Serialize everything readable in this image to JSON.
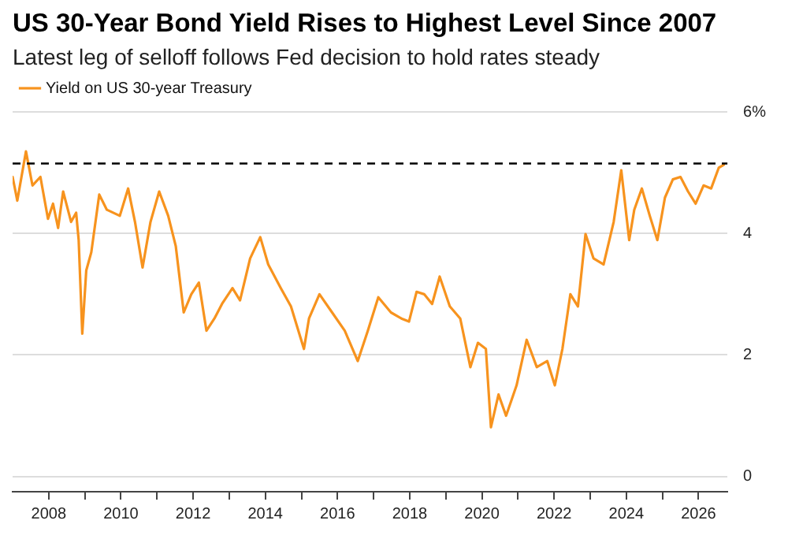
{
  "chart_data": {
    "type": "line",
    "title": "US 30-Year Bond Yield Rises to Highest Level Since 2007",
    "subtitle": "Latest leg of selloff follows Fed decision to hold rates steady",
    "x": [
      2007.0,
      2007.13,
      2007.37,
      2007.55,
      2007.77,
      2007.98,
      2008.12,
      2008.26,
      2008.4,
      2008.62,
      2008.76,
      2008.83,
      2008.93,
      2009.04,
      2009.18,
      2009.4,
      2009.61,
      2009.97,
      2010.2,
      2010.39,
      2010.6,
      2010.82,
      2011.06,
      2011.31,
      2011.52,
      2011.74,
      2011.95,
      2012.16,
      2012.37,
      2012.59,
      2012.8,
      2013.09,
      2013.3,
      2013.58,
      2013.86,
      2014.08,
      2014.43,
      2014.71,
      2015.07,
      2015.21,
      2015.5,
      2015.85,
      2016.2,
      2016.56,
      2016.84,
      2017.13,
      2017.48,
      2017.77,
      2017.98,
      2018.19,
      2018.4,
      2018.62,
      2018.83,
      2019.11,
      2019.4,
      2019.68,
      2019.89,
      2020.11,
      2020.25,
      2020.46,
      2020.67,
      2020.96,
      2021.24,
      2021.52,
      2021.81,
      2022.02,
      2022.23,
      2022.45,
      2022.66,
      2022.87,
      2023.09,
      2023.37,
      2023.65,
      2023.86,
      2024.08,
      2024.22,
      2024.43,
      2024.65,
      2024.86,
      2025.07,
      2025.29,
      2025.5,
      2025.71,
      2025.92,
      2026.14,
      2026.35,
      2026.56,
      2026.7
    ],
    "series": [
      {
        "name": "Yield on US 30-year Treasury",
        "color": "#f7931e",
        "values": [
          4.93,
          4.54,
          5.35,
          4.79,
          4.93,
          4.24,
          4.49,
          4.09,
          4.69,
          4.19,
          4.34,
          3.89,
          2.35,
          3.39,
          3.69,
          4.64,
          4.39,
          4.29,
          4.74,
          4.19,
          3.44,
          4.19,
          4.69,
          4.29,
          3.79,
          2.7,
          3.0,
          3.19,
          2.4,
          2.6,
          2.84,
          3.1,
          2.9,
          3.59,
          3.94,
          3.49,
          3.1,
          2.8,
          2.1,
          2.6,
          3.0,
          2.7,
          2.4,
          1.9,
          2.4,
          2.95,
          2.7,
          2.6,
          2.55,
          3.04,
          3.0,
          2.84,
          3.29,
          2.8,
          2.6,
          1.8,
          2.2,
          2.1,
          0.81,
          1.35,
          1.0,
          1.5,
          2.25,
          1.8,
          1.9,
          1.5,
          2.1,
          3.0,
          2.8,
          3.99,
          3.59,
          3.49,
          4.19,
          5.04,
          3.89,
          4.39,
          4.74,
          4.29,
          3.89,
          4.59,
          4.89,
          4.93,
          4.69,
          4.49,
          4.79,
          4.74,
          5.08,
          5.13
        ]
      }
    ],
    "xlim": [
      2007,
      2026.8
    ],
    "xticks": [
      {
        "value": 2008,
        "label": "2008"
      },
      {
        "value": 2009,
        "label": null
      },
      {
        "value": 2010,
        "label": "2010"
      },
      {
        "value": 2011,
        "label": null
      },
      {
        "value": 2012,
        "label": "2012"
      },
      {
        "value": 2013,
        "label": null
      },
      {
        "value": 2014,
        "label": "2014"
      },
      {
        "value": 2015,
        "label": null
      },
      {
        "value": 2016,
        "label": "2016"
      },
      {
        "value": 2017,
        "label": null
      },
      {
        "value": 2018,
        "label": "2018"
      },
      {
        "value": 2019,
        "label": null
      },
      {
        "value": 2020,
        "label": "2020"
      },
      {
        "value": 2021,
        "label": null
      },
      {
        "value": 2022,
        "label": "2022"
      },
      {
        "value": 2023,
        "label": null
      },
      {
        "value": 2024,
        "label": "2024"
      },
      {
        "value": 2025,
        "label": null
      },
      {
        "value": 2026,
        "label": "2026"
      }
    ],
    "ylim": [
      -0.25,
      6
    ],
    "yticks": [
      0,
      2,
      4,
      {
        "value": 6,
        "label": "6%"
      }
    ],
    "ref_lines": [
      {
        "axis": "y",
        "value": 5.15,
        "color": "#000000",
        "line_style": "dashed"
      }
    ],
    "grid": "y",
    "legend": "top left",
    "marker": "none",
    "line_style": "solid"
  }
}
